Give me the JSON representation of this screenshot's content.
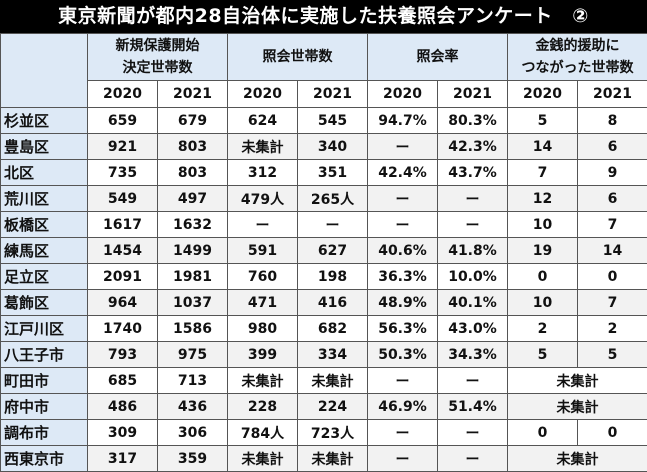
{
  "title": "東京新聞が都内28自治体に実施した扶養照会アンケート　②",
  "header": {
    "groups": [
      "新規保護開始\n決定世帯数",
      "照会世帯数",
      "照会率",
      "金銭的援助に\nつながった世帯数"
    ],
    "years": [
      "2020",
      "2021",
      "2020",
      "2021",
      "2020",
      "2021",
      "2020",
      "2021"
    ]
  },
  "rows": [
    {
      "name": "杉並区",
      "cells": [
        "659",
        "679",
        "624",
        "545",
        "94.7%",
        "80.3%",
        "5",
        "8"
      ]
    },
    {
      "name": "豊島区",
      "cells": [
        "921",
        "803",
        "未集計",
        "340",
        "ー",
        "42.3%",
        "14",
        "6"
      ]
    },
    {
      "name": "北区",
      "cells": [
        "735",
        "803",
        "312",
        "351",
        "42.4%",
        "43.7%",
        "7",
        "9"
      ]
    },
    {
      "name": "荒川区",
      "cells": [
        "549",
        "497",
        "479人",
        "265人",
        "ー",
        "ー",
        "12",
        "6"
      ]
    },
    {
      "name": "板橋区",
      "cells": [
        "1617",
        "1632",
        "ー",
        "ー",
        "ー",
        "ー",
        "10",
        "7"
      ]
    },
    {
      "name": "練馬区",
      "cells": [
        "1454",
        "1499",
        "591",
        "627",
        "40.6%",
        "41.8%",
        "19",
        "14"
      ]
    },
    {
      "name": "足立区",
      "cells": [
        "2091",
        "1981",
        "760",
        "198",
        "36.3%",
        "10.0%",
        "0",
        "0"
      ]
    },
    {
      "name": "葛飾区",
      "cells": [
        "964",
        "1037",
        "471",
        "416",
        "48.9%",
        "40.1%",
        "10",
        "7"
      ]
    },
    {
      "name": "江戸川区",
      "cells": [
        "1740",
        "1586",
        "980",
        "682",
        "56.3%",
        "43.0%",
        "2",
        "2"
      ]
    },
    {
      "name": "八王子市",
      "cells": [
        "793",
        "975",
        "399",
        "334",
        "50.3%",
        "34.3%",
        "5",
        "5"
      ]
    },
    {
      "name": "町田市",
      "cells": [
        "685",
        "713",
        "未集計",
        "未集計",
        "ー",
        "ー",
        "未集計"
      ]
    },
    {
      "name": "府中市",
      "cells": [
        "486",
        "436",
        "228",
        "224",
        "46.9%",
        "51.4%",
        "未集計"
      ]
    },
    {
      "name": "調布市",
      "cells": [
        "309",
        "306",
        "784人",
        "723人",
        "ー",
        "ー",
        "0",
        "0"
      ]
    },
    {
      "name": "西東京市",
      "cells": [
        "317",
        "359",
        "未集計",
        "未集計",
        "ー",
        "ー",
        "未集計"
      ]
    }
  ],
  "colors": {
    "title_bg": "#000000",
    "header_bg": "#dde9f6",
    "stripe": "#f2f2f2"
  }
}
